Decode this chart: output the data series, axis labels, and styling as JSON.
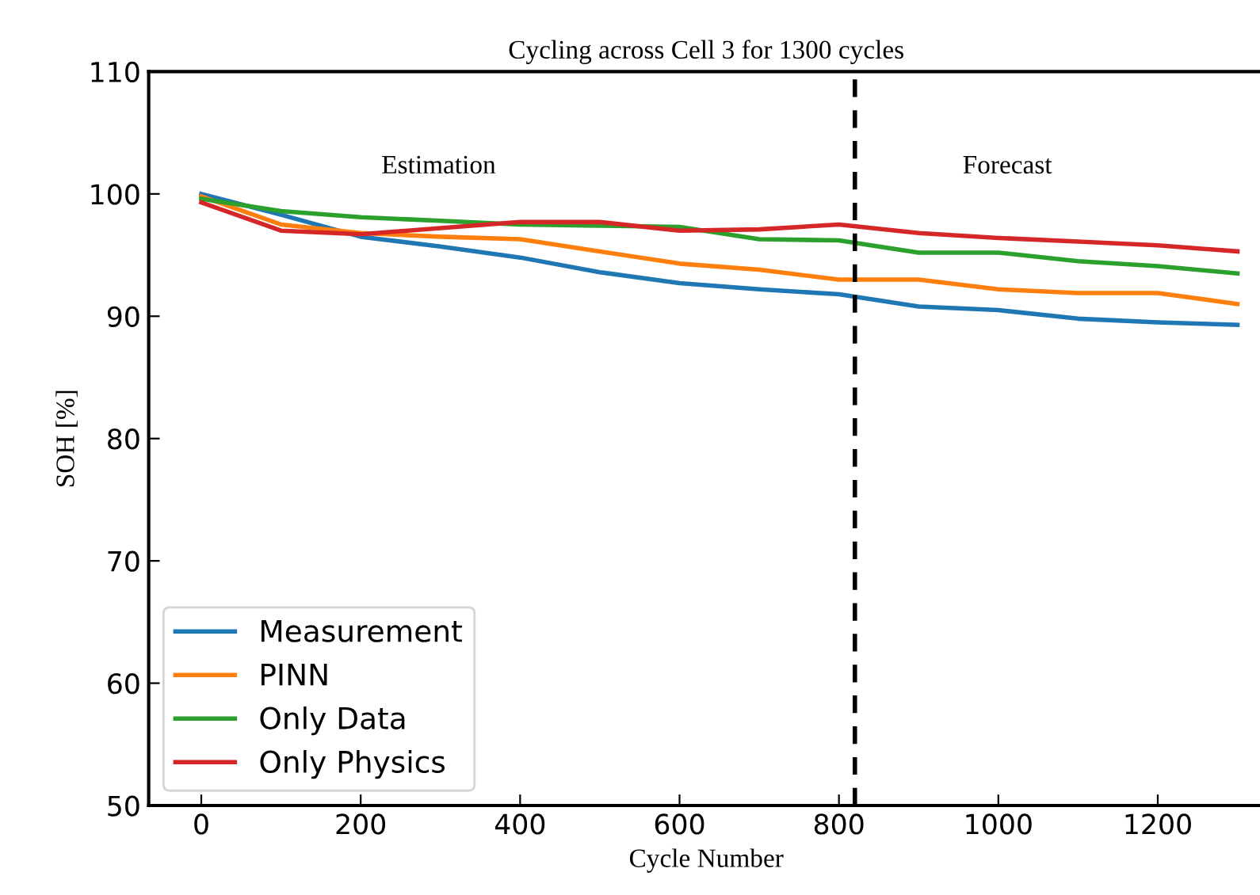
{
  "chart_data": {
    "type": "line",
    "title": "Cycling across Cell 3 for 1300 cycles",
    "xlabel": "Cycle Number",
    "ylabel": "SOH [%]",
    "x": [
      0,
      100,
      200,
      300,
      400,
      500,
      600,
      700,
      800,
      900,
      1000,
      1100,
      1200,
      1300
    ],
    "series": [
      {
        "name": "Measurement",
        "color": "#1f77b4",
        "values": [
          100.0,
          98.3,
          96.5,
          95.7,
          94.8,
          93.6,
          92.7,
          92.2,
          91.8,
          90.8,
          90.5,
          89.8,
          89.5,
          89.3
        ]
      },
      {
        "name": "PINN",
        "color": "#ff7f0e",
        "values": [
          99.8,
          97.5,
          96.8,
          96.5,
          96.3,
          95.3,
          94.3,
          93.8,
          93.0,
          93.0,
          92.2,
          91.9,
          91.9,
          91.0
        ]
      },
      {
        "name": "Only Data",
        "color": "#2ca02c",
        "values": [
          99.6,
          98.6,
          98.1,
          97.8,
          97.5,
          97.4,
          97.3,
          96.3,
          96.2,
          95.2,
          95.2,
          94.5,
          94.1,
          93.5
        ]
      },
      {
        "name": "Only Physics",
        "color": "#d62728",
        "values": [
          99.3,
          97.0,
          96.7,
          97.2,
          97.7,
          97.7,
          97.0,
          97.1,
          97.5,
          96.8,
          96.4,
          96.1,
          95.8,
          95.3
        ]
      }
    ],
    "ref_lines": [
      {
        "axis": "x",
        "value": 820,
        "color": "#000000",
        "line_style": "dashed"
      }
    ],
    "annotations": [
      "Estimation",
      "Forecast"
    ],
    "xlim": [
      -66,
      1333
    ],
    "ylim": [
      50,
      110
    ],
    "xticks": [
      0,
      200,
      400,
      600,
      800,
      1000,
      1200
    ],
    "yticks": [
      50,
      60,
      70,
      80,
      90,
      100,
      110
    ],
    "legend": "bottom left",
    "grid": false
  }
}
